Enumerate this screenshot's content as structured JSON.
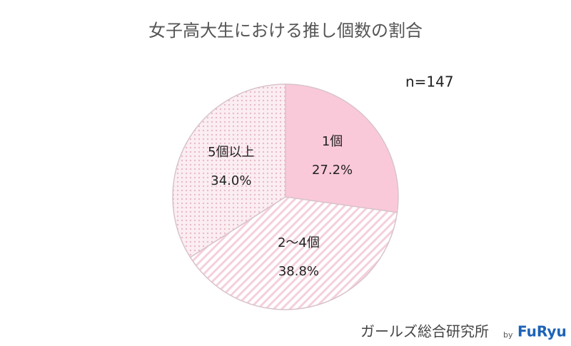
{
  "chart_data": {
    "type": "pie",
    "title": "女子高大生における推し個数の割合",
    "note": "n=147",
    "categories": [
      "1個",
      "2～4個",
      "5個以上"
    ],
    "values": [
      27.2,
      38.8,
      34.0
    ],
    "value_labels": [
      "27.2%",
      "38.8%",
      "34.0%"
    ],
    "colors": [
      "#fac9d9",
      "#f4d5df",
      "#f6d9e2"
    ],
    "patterns": [
      "solid",
      "hatch",
      "dots"
    ],
    "source": "ガールズ総合研究所",
    "source_by": "by",
    "source_brand": "FuRyu"
  }
}
